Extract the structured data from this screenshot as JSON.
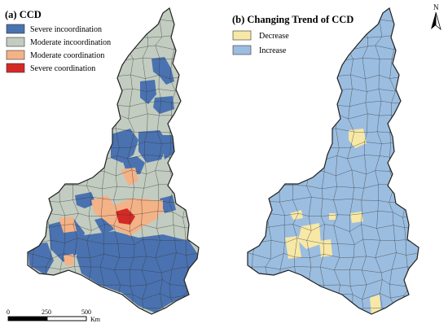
{
  "panel_a": {
    "title": "(a) CCD",
    "legend": [
      {
        "label": "Severe incoordination",
        "color": "#4a72b0"
      },
      {
        "label": "Moderate incoordination",
        "color": "#c2ccc0"
      },
      {
        "label": "Moderate coordination",
        "color": "#f4b287"
      },
      {
        "label": "Severe coordination",
        "color": "#d42a25"
      }
    ]
  },
  "panel_b": {
    "title": "(b) Changing Trend of CCD",
    "legend": [
      {
        "label": "Decrease",
        "color": "#f7e8a6"
      },
      {
        "label": "Increase",
        "color": "#9bbde0"
      }
    ]
  },
  "scale_bar": {
    "ticks": [
      "0",
      "250",
      "500"
    ],
    "unit": "Km"
  },
  "north_arrow": {
    "label": "N"
  }
}
